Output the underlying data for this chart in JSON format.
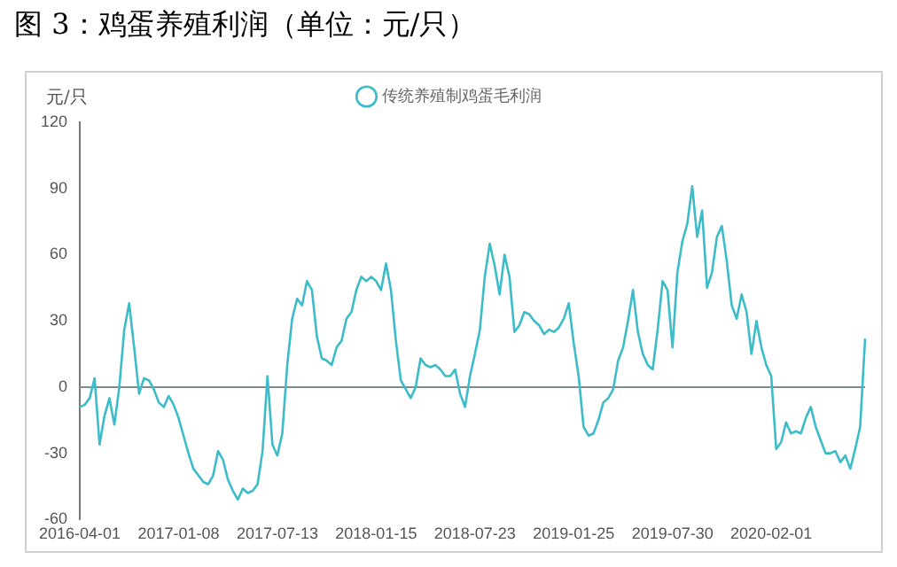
{
  "chart_data": {
    "type": "line",
    "title": "图 3：鸡蛋养殖利润（单位：元/只）",
    "ylabel": "元/只",
    "categories": [
      "2016-04-01",
      null,
      null,
      null,
      null,
      null,
      null,
      null,
      null,
      null,
      null,
      null,
      null,
      null,
      null,
      null,
      null,
      null,
      null,
      null,
      "2017-01-08",
      null,
      null,
      null,
      null,
      null,
      null,
      null,
      null,
      null,
      null,
      null,
      null,
      null,
      null,
      null,
      null,
      null,
      null,
      null,
      "2017-07-13",
      null,
      null,
      null,
      null,
      null,
      null,
      null,
      null,
      null,
      null,
      null,
      null,
      null,
      null,
      null,
      null,
      null,
      null,
      null,
      "2018-01-15",
      null,
      null,
      null,
      null,
      null,
      null,
      null,
      null,
      null,
      null,
      null,
      null,
      null,
      null,
      null,
      null,
      null,
      null,
      null,
      "2018-07-23",
      null,
      null,
      null,
      null,
      null,
      null,
      null,
      null,
      null,
      null,
      null,
      null,
      null,
      null,
      null,
      null,
      null,
      null,
      null,
      "2019-01-25",
      null,
      null,
      null,
      null,
      null,
      null,
      null,
      null,
      null,
      null,
      null,
      null,
      null,
      null,
      null,
      null,
      null,
      null,
      null,
      "2019-07-30",
      null,
      null,
      null,
      null,
      null,
      null,
      null,
      null,
      null,
      null,
      null,
      null,
      null,
      null,
      null,
      null,
      null,
      null,
      null,
      "2020-02-01",
      null,
      null,
      null,
      null,
      null,
      null,
      null,
      null,
      null,
      null,
      null,
      null,
      null,
      null,
      null,
      null,
      null,
      null,
      null
    ],
    "series": [
      {
        "name": "传统养殖制鸡蛋毛利润",
        "color": "#3cbcc8",
        "values": [
          -9,
          -8,
          -5,
          4,
          -26,
          -13,
          -5,
          -17,
          0,
          26,
          38,
          18,
          -3,
          4,
          3,
          -1,
          -7,
          -9,
          -4,
          -8,
          -14,
          -22,
          -30,
          -37,
          -40,
          -43,
          -44,
          -40,
          -29,
          -33,
          -42,
          -47,
          -51,
          -46,
          -48,
          -47,
          -44,
          -29,
          5,
          -26,
          -31,
          -21,
          10,
          31,
          40,
          37,
          48,
          44,
          23,
          13,
          12,
          10,
          18,
          21,
          31,
          34,
          44,
          50,
          48,
          50,
          48,
          44,
          56,
          44,
          21,
          3,
          -1,
          -5,
          0,
          13,
          10,
          9,
          10,
          8,
          5,
          5,
          8,
          -3,
          -9,
          5,
          15,
          26,
          50,
          65,
          55,
          42,
          60,
          50,
          25,
          28,
          34,
          33,
          30,
          28,
          24,
          26,
          25,
          27,
          31,
          38,
          20,
          5,
          -18,
          -22,
          -21,
          -15,
          -7,
          -5,
          -1,
          12,
          18,
          30,
          44,
          25,
          15,
          10,
          8,
          26,
          48,
          44,
          18,
          52,
          66,
          74,
          91,
          68,
          80,
          45,
          52,
          68,
          73,
          57,
          37,
          31,
          42,
          34,
          15,
          30,
          18,
          10,
          5,
          -28,
          -25,
          -16,
          -21,
          -20,
          -21,
          -14,
          -9,
          -18,
          -24,
          -30,
          -30,
          -29,
          -34,
          -31,
          -37,
          -28,
          -18,
          22
        ]
      }
    ],
    "ylim": [
      -60,
      120
    ],
    "yticks": [
      -60,
      -30,
      0,
      30,
      60,
      90,
      120
    ],
    "grid": false,
    "legend": "top",
    "ref_lines": [
      {
        "axis": "y",
        "value": 0,
        "color": "#7f8c8d"
      }
    ]
  }
}
